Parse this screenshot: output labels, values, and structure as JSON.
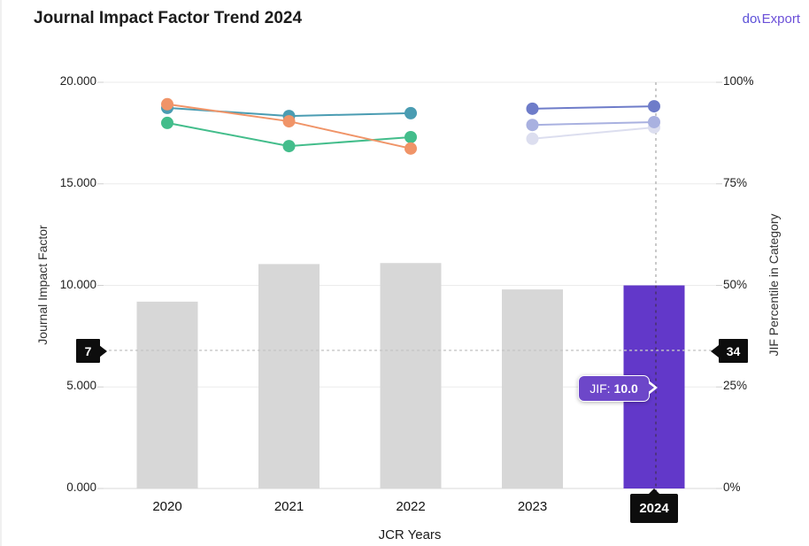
{
  "header": {
    "title": "Journal Impact Factor Trend 2024",
    "download_text": "dow",
    "export_label": "Export",
    "link_color": "#6b4fd8"
  },
  "chart_data": {
    "type": "bar",
    "title": "Journal Impact Factor Trend 2024",
    "categories": [
      "2020",
      "2021",
      "2022",
      "2023",
      "2024"
    ],
    "bar_series": {
      "name": "Journal Impact Factor (JIF)",
      "axis": "left",
      "values": [
        9.2,
        11.05,
        11.1,
        9.8,
        10.0
      ],
      "default_color": "#d7d7d7",
      "highlight_color": "#6238c9",
      "highlight_index": 4
    },
    "line_series": [
      {
        "name": "category-trend-teal",
        "axis": "right",
        "color": "#4a9cb2",
        "values": [
          93.7,
          91.7,
          92.4,
          null,
          null
        ]
      },
      {
        "name": "category-trend-green",
        "axis": "right",
        "color": "#43bd8b",
        "values": [
          90.0,
          84.3,
          86.5,
          null,
          null
        ]
      },
      {
        "name": "category-trend-orange",
        "axis": "right",
        "color": "#f09468",
        "values": [
          94.6,
          90.4,
          83.7,
          null,
          null
        ]
      },
      {
        "name": "category-trend-light-lavender",
        "axis": "right",
        "color": "#dcdeef",
        "values": [
          null,
          null,
          null,
          86.1,
          88.9
        ]
      },
      {
        "name": "category-trend-lavender",
        "axis": "right",
        "color": "#a9b1e0",
        "values": [
          null,
          null,
          null,
          89.5,
          90.2
        ]
      },
      {
        "name": "category-trend-periwinkle",
        "axis": "right",
        "color": "#6e7cc9",
        "values": [
          null,
          null,
          null,
          93.5,
          94.1
        ]
      }
    ],
    "left_axis": {
      "label": "Journal Impact Factor",
      "range": [
        0,
        20
      ],
      "ticks": [
        "20.000",
        "15.000",
        "10.000",
        "5.000",
        "0.000"
      ],
      "tick_values": [
        20,
        15,
        10,
        5,
        0
      ]
    },
    "right_axis": {
      "label": "JIF Percentile in Category",
      "range": [
        0,
        100
      ],
      "ticks": [
        "100%",
        "75%",
        "50%",
        "25%",
        "0%"
      ],
      "tick_values": [
        100,
        75,
        50,
        25,
        0
      ]
    },
    "xlabel": "JCR Years",
    "grid": true,
    "legend": "none",
    "annotations": {
      "hline": {
        "left_marker": "7",
        "right_marker": "34",
        "right_value": 34
      },
      "tooltip": {
        "label": "JIF:",
        "value": "10.0"
      },
      "selected_year": "2024",
      "vline_year": "2024"
    },
    "colors": {
      "grid": "#ebebeb",
      "axis_line": "#d8d8d8",
      "dash_gray": "#bdbdbd",
      "dash_dark_on_bar": "#4b3178",
      "marker_bg": "#0d0d0d",
      "tooltip_bg": "#6d47c9"
    }
  }
}
